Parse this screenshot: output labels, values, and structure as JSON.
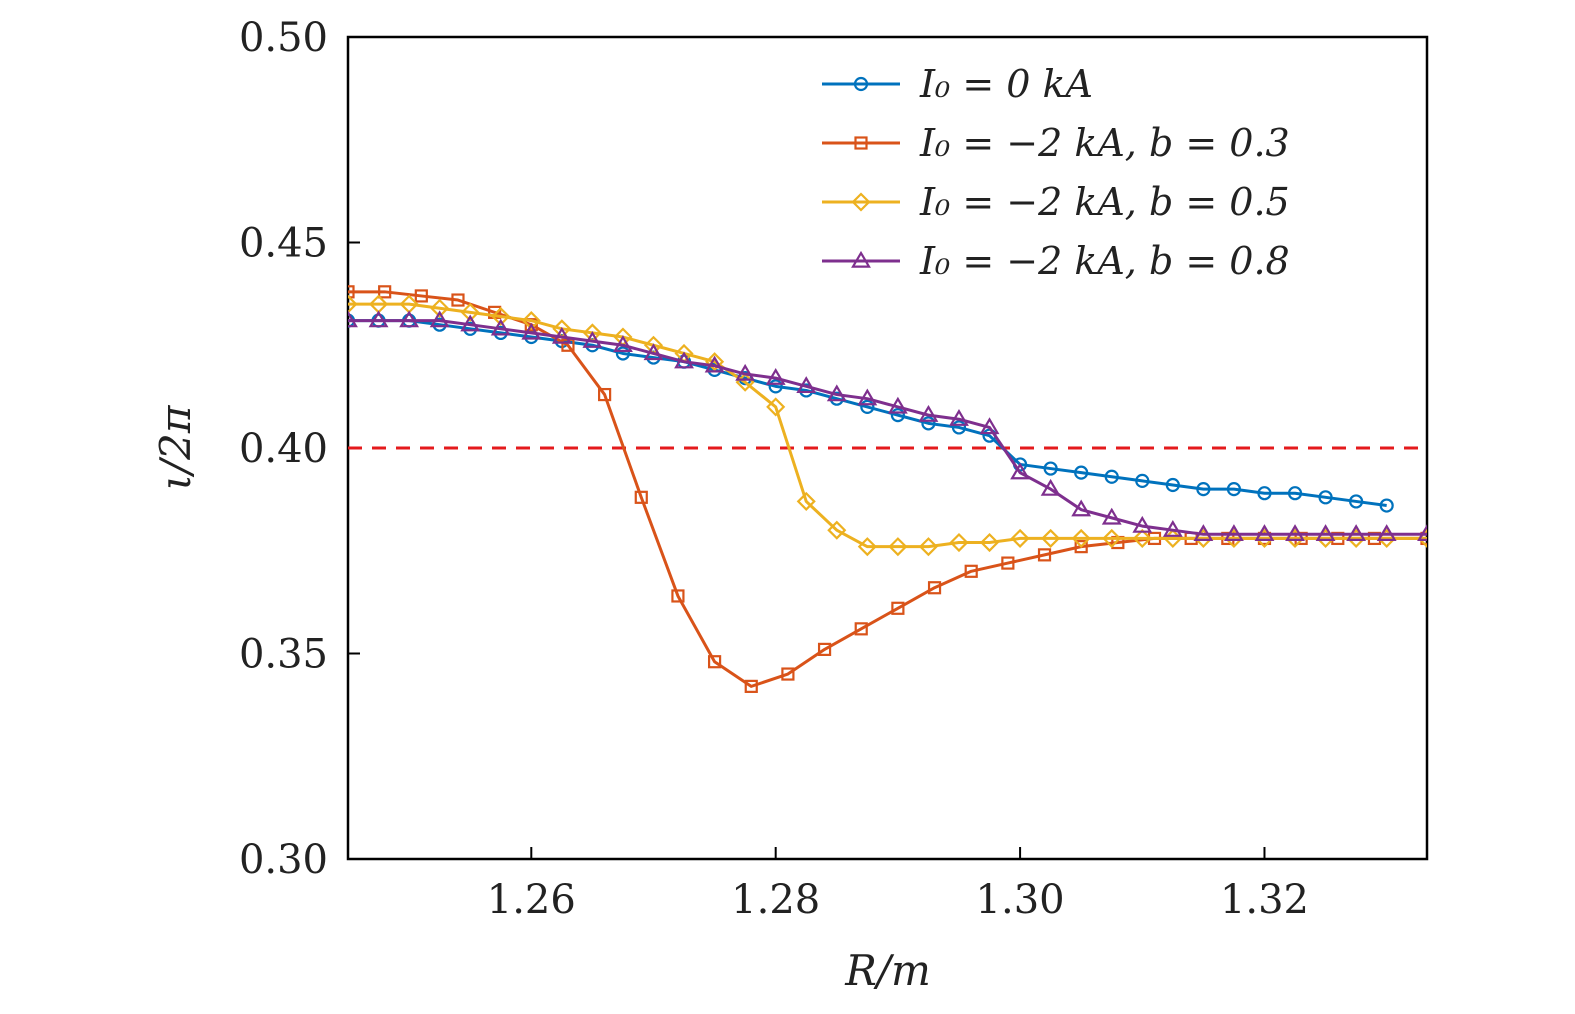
{
  "chart_data": {
    "type": "line",
    "title": "",
    "xlabel": "R/m",
    "ylabel": "ι/2π",
    "xlim": [
      1.245,
      1.3333
    ],
    "ylim": [
      0.3,
      0.5
    ],
    "xticks": [
      1.26,
      1.28,
      1.3,
      1.32
    ],
    "xtick_labels": [
      "1.26",
      "1.28",
      "1.30",
      "1.32"
    ],
    "yticks": [
      0.3,
      0.35,
      0.4,
      0.45,
      0.5
    ],
    "ytick_labels": [
      "0.30",
      "0.35",
      "0.40",
      "0.45",
      "0.50"
    ],
    "grid": false,
    "legend_position": "top-right",
    "reference_line": {
      "y": 0.4,
      "color": "#e41a1c",
      "style": "dashed"
    },
    "series": [
      {
        "name": "I0 = 0 kA",
        "legend": "I₀ = 0 kA",
        "color": "#0072bd",
        "marker": "circle",
        "x": [
          1.245,
          1.2475,
          1.25,
          1.2525,
          1.255,
          1.2575,
          1.26,
          1.2625,
          1.265,
          1.2675,
          1.27,
          1.2725,
          1.275,
          1.2775,
          1.28,
          1.2825,
          1.285,
          1.2875,
          1.29,
          1.2925,
          1.295,
          1.2975,
          1.3,
          1.3025,
          1.305,
          1.3075,
          1.31,
          1.3125,
          1.315,
          1.3175,
          1.32,
          1.3225,
          1.325,
          1.3275,
          1.33
        ],
        "y": [
          0.431,
          0.431,
          0.431,
          0.43,
          0.429,
          0.428,
          0.427,
          0.426,
          0.425,
          0.423,
          0.422,
          0.421,
          0.419,
          0.417,
          0.415,
          0.414,
          0.412,
          0.41,
          0.408,
          0.406,
          0.405,
          0.403,
          0.396,
          0.395,
          0.394,
          0.393,
          0.392,
          0.391,
          0.39,
          0.39,
          0.389,
          0.389,
          0.388,
          0.387,
          0.386
        ]
      },
      {
        "name": "I0 = -2 kA, b = 0.3",
        "legend": "I₀ = −2 kA, b = 0.3",
        "color": "#d95319",
        "marker": "square",
        "x": [
          1.245,
          1.248,
          1.251,
          1.254,
          1.257,
          1.26,
          1.263,
          1.266,
          1.269,
          1.272,
          1.275,
          1.278,
          1.281,
          1.284,
          1.287,
          1.29,
          1.293,
          1.296,
          1.299,
          1.302,
          1.305,
          1.308,
          1.311,
          1.314,
          1.317,
          1.32,
          1.323,
          1.326,
          1.329,
          1.3333
        ],
        "y": [
          0.438,
          0.438,
          0.437,
          0.436,
          0.433,
          0.43,
          0.425,
          0.413,
          0.388,
          0.364,
          0.348,
          0.342,
          0.345,
          0.351,
          0.356,
          0.361,
          0.366,
          0.37,
          0.372,
          0.374,
          0.376,
          0.377,
          0.378,
          0.378,
          0.378,
          0.378,
          0.378,
          0.378,
          0.378,
          0.378
        ]
      },
      {
        "name": "I0 = -2 kA, b = 0.5",
        "legend": "I₀ = −2 kA, b = 0.5",
        "color": "#edb120",
        "marker": "diamond",
        "x": [
          1.245,
          1.2475,
          1.25,
          1.2525,
          1.255,
          1.2575,
          1.26,
          1.2625,
          1.265,
          1.2675,
          1.27,
          1.2725,
          1.275,
          1.2775,
          1.28,
          1.2825,
          1.285,
          1.2875,
          1.29,
          1.2925,
          1.295,
          1.2975,
          1.3,
          1.3025,
          1.305,
          1.3075,
          1.31,
          1.3125,
          1.315,
          1.3175,
          1.32,
          1.3225,
          1.325,
          1.3275,
          1.33,
          1.3333
        ],
        "y": [
          0.435,
          0.435,
          0.435,
          0.434,
          0.433,
          0.432,
          0.431,
          0.429,
          0.428,
          0.427,
          0.425,
          0.423,
          0.421,
          0.416,
          0.41,
          0.387,
          0.38,
          0.376,
          0.376,
          0.376,
          0.377,
          0.377,
          0.378,
          0.378,
          0.378,
          0.378,
          0.378,
          0.378,
          0.378,
          0.378,
          0.378,
          0.378,
          0.378,
          0.378,
          0.378,
          0.378
        ]
      },
      {
        "name": "I0 = -2 kA, b = 0.8",
        "legend": "I₀ = −2 kA, b = 0.8",
        "color": "#7e2f8e",
        "marker": "triangle",
        "x": [
          1.245,
          1.2475,
          1.25,
          1.2525,
          1.255,
          1.2575,
          1.26,
          1.2625,
          1.265,
          1.2675,
          1.27,
          1.2725,
          1.275,
          1.2775,
          1.28,
          1.2825,
          1.285,
          1.2875,
          1.29,
          1.2925,
          1.295,
          1.2975,
          1.3,
          1.3025,
          1.305,
          1.3075,
          1.31,
          1.3125,
          1.315,
          1.3175,
          1.32,
          1.3225,
          1.325,
          1.3275,
          1.33,
          1.3333
        ],
        "y": [
          0.431,
          0.431,
          0.431,
          0.431,
          0.43,
          0.429,
          0.428,
          0.427,
          0.426,
          0.425,
          0.423,
          0.421,
          0.42,
          0.418,
          0.417,
          0.415,
          0.413,
          0.412,
          0.41,
          0.408,
          0.407,
          0.405,
          0.394,
          0.39,
          0.385,
          0.383,
          0.381,
          0.38,
          0.379,
          0.379,
          0.379,
          0.379,
          0.379,
          0.379,
          0.379,
          0.379
        ]
      }
    ]
  }
}
